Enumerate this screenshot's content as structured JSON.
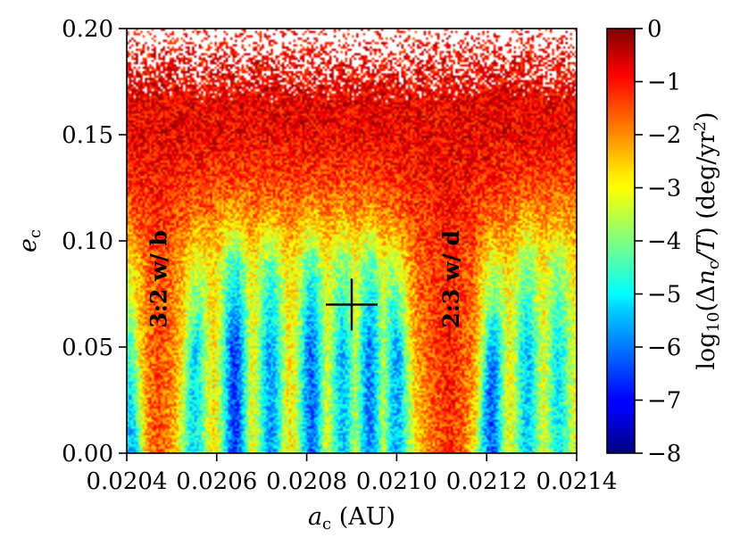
{
  "chart_data": {
    "type": "heatmap",
    "title": "",
    "x_axis": {
      "label_main": "a",
      "label_sub": "c",
      "label_unit": " (AU)",
      "range": [
        0.0204,
        0.0214
      ],
      "ticks": [
        0.0204,
        0.0206,
        0.0208,
        0.021,
        0.0212,
        0.0214
      ],
      "tick_labels": [
        "0.0204",
        "0.0206",
        "0.0208",
        "0.0210",
        "0.0212",
        "0.0214"
      ]
    },
    "y_axis": {
      "label_main": "e",
      "label_sub": "c",
      "range": [
        0.0,
        0.2
      ],
      "ticks": [
        0.0,
        0.05,
        0.1,
        0.15,
        0.2
      ],
      "tick_labels": [
        "0.00",
        "0.05",
        "0.10",
        "0.15",
        "0.20"
      ]
    },
    "colorbar": {
      "label_prefix": "log",
      "label_sub": "10",
      "label_open": "(Δ",
      "label_n": "n",
      "label_n_sub": "c",
      "label_T": "/T",
      "label_units": ") (deg/yr",
      "label_sup": "2",
      "label_close": ")",
      "range": [
        -8,
        0
      ],
      "ticks": [
        0,
        -1,
        -2,
        -3,
        -4,
        -5,
        -6,
        -7,
        -8
      ],
      "tick_labels": [
        "0",
        "−1",
        "−2",
        "−3",
        "−4",
        "−5",
        "−6",
        "−7",
        "−8"
      ],
      "colormap": "jet"
    },
    "annotations": [
      {
        "text": "3:2 w/ b",
        "x": 0.02047,
        "y": 0.082
      },
      {
        "text": "2:3 w/ d",
        "x": 0.02112,
        "y": 0.082
      }
    ],
    "marker": {
      "symbol": "+",
      "x": 0.0209,
      "y": 0.07
    },
    "grid": false,
    "field_model": {
      "description_free_values": true,
      "resonance_bands": [
        {
          "center_x": 0.02047,
          "width": 4.5e-05,
          "value": -1.3
        },
        {
          "center_x": 0.021115,
          "width": 6e-05,
          "value": -0.9
        }
      ],
      "stable_streaks": [
        {
          "center_x": 0.02041,
          "value": -5.4
        },
        {
          "center_x": 0.02055,
          "value": -5.2
        },
        {
          "center_x": 0.02064,
          "value": -6.6
        },
        {
          "center_x": 0.02072,
          "value": -5.8
        },
        {
          "center_x": 0.02081,
          "value": -6.2
        },
        {
          "center_x": 0.02088,
          "value": -5.4
        },
        {
          "center_x": 0.02094,
          "value": -6.0
        },
        {
          "center_x": 0.021,
          "value": -5.6
        },
        {
          "center_x": 0.02121,
          "value": -6.3
        },
        {
          "center_x": 0.02129,
          "value": -5.4
        },
        {
          "center_x": 0.02136,
          "value": -5.0
        }
      ],
      "chaos_onset_e": 0.15,
      "empty_above_e": 0.165
    }
  }
}
